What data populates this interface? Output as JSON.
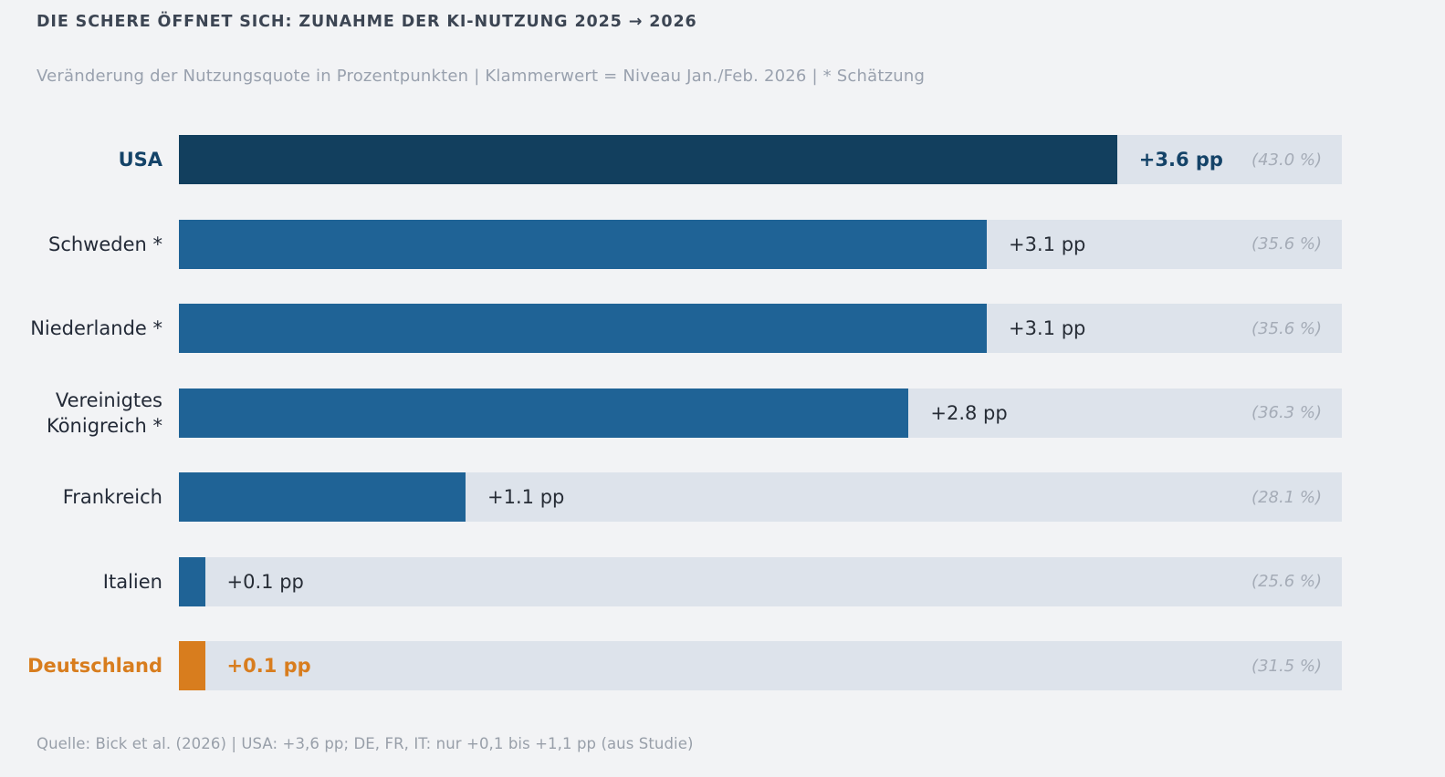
{
  "header": {
    "title": "DIE SCHERE ÖFFNET SICH: ZUNAHME DER KI-NUTZUNG 2025 → 2026",
    "subtitle": "Veränderung der Nutzungsquote in Prozentpunkten | Klammerwert = Niveau Jan./Feb. 2026 | * Schätzung"
  },
  "footer": {
    "source": "Quelle: Bick et al. (2026) | USA: +3,6 pp; DE, FR, IT: nur +0,1 bis +1,1 pp (aus Studie)"
  },
  "colors": {
    "background": "#f2f3f5",
    "bar_track": "#dde3eb",
    "bar_navy": "#123f5e",
    "bar_blue": "#1f6396",
    "bar_orange": "#d87d1e",
    "title_text": "#3c4553",
    "subtitle_text": "#99a1ae",
    "label_text": "#232a37",
    "level_text": "#a5acb7"
  },
  "chart_data": {
    "type": "bar",
    "orientation": "horizontal",
    "title": "DIE SCHERE ÖFFNET SICH: ZUNAHME DER KI-NUTZUNG 2025 → 2026",
    "subtitle": "Veränderung der Nutzungsquote in Prozentpunkten | Klammerwert = Niveau Jan./Feb. 2026 | * Schätzung",
    "unit": "Prozentpunkte (pp)",
    "categories": [
      "USA",
      "Schweden *",
      "Niederlande *",
      "Vereinigtes Königreich *",
      "Frankreich",
      "Italien",
      "Deutschland"
    ],
    "values": [
      3.6,
      3.1,
      3.1,
      2.8,
      1.1,
      0.1,
      0.1
    ],
    "levels_2026_pct": [
      43.0,
      35.6,
      35.6,
      36.3,
      28.1,
      25.6,
      31.5
    ],
    "xlim": [
      0,
      4.46
    ],
    "grid": false,
    "legend": false,
    "highlight": {
      "USA": "navy-bold",
      "Deutschland": "orange-bold"
    },
    "source": "Quelle: Bick et al. (2026) | USA: +3,6 pp; DE, FR, IT: nur +0,1 bis +1,1 pp (aus Studie)"
  },
  "rows": [
    {
      "label": "USA",
      "value": 3.6,
      "value_label": "+3.6 pp",
      "level_label": "(43.0 %)",
      "emphasis": "usa"
    },
    {
      "label": "Schweden *",
      "value": 3.1,
      "value_label": "+3.1 pp",
      "level_label": "(35.6 %)",
      "emphasis": "none"
    },
    {
      "label": "Niederlande *",
      "value": 3.1,
      "value_label": "+3.1 pp",
      "level_label": "(35.6 %)",
      "emphasis": "none"
    },
    {
      "label": "Vereinigtes Königreich *",
      "value": 2.8,
      "value_label": "+2.8 pp",
      "level_label": "(36.3 %)",
      "emphasis": "none"
    },
    {
      "label": "Frankreich",
      "value": 1.1,
      "value_label": "+1.1 pp",
      "level_label": "(28.1 %)",
      "emphasis": "none"
    },
    {
      "label": "Italien",
      "value": 0.1,
      "value_label": "+0.1 pp",
      "level_label": "(25.6 %)",
      "emphasis": "none"
    },
    {
      "label": "Deutschland",
      "value": 0.1,
      "value_label": "+0.1 pp",
      "level_label": "(31.5 %)",
      "emphasis": "de"
    }
  ]
}
